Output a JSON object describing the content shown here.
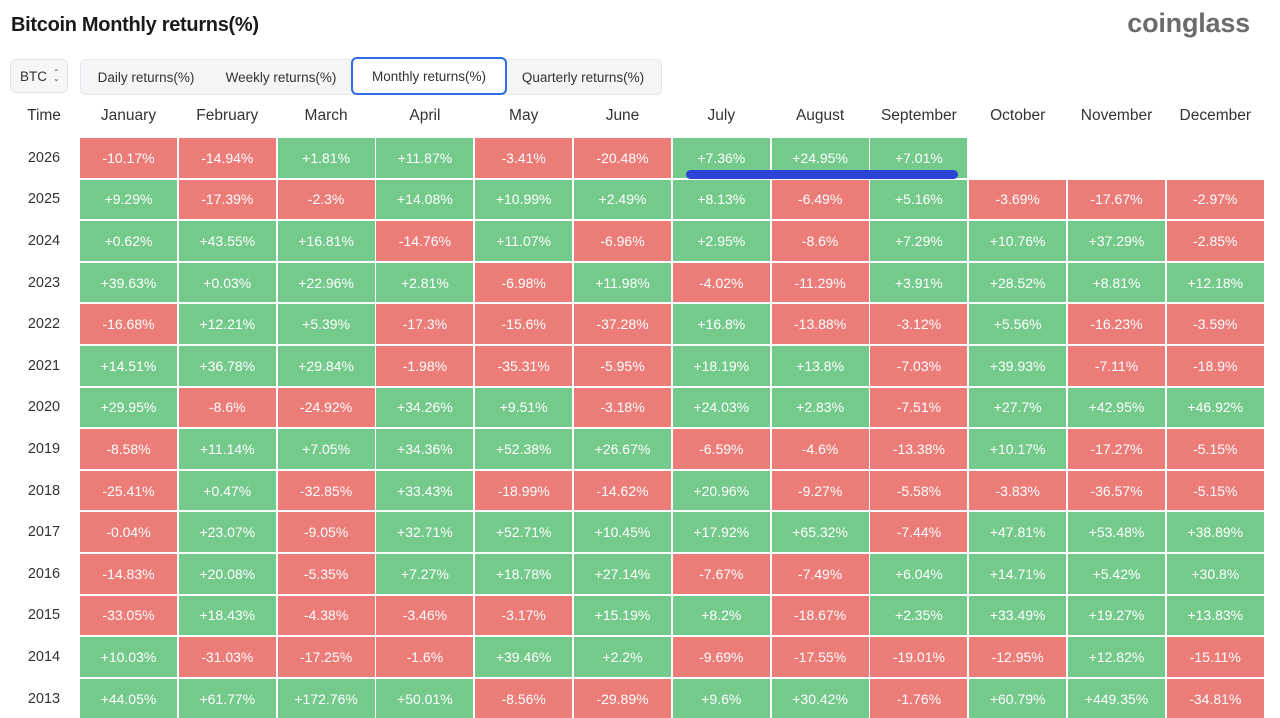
{
  "header": {
    "title": "Bitcoin Monthly returns(%)",
    "logo": "coinglass"
  },
  "controls": {
    "coin": "BTC",
    "tabs": [
      {
        "label": "Daily returns(%)",
        "active": false
      },
      {
        "label": "Weekly returns(%)",
        "active": false
      },
      {
        "label": "Monthly returns(%)",
        "active": true
      },
      {
        "label": "Quarterly returns(%)",
        "active": false
      }
    ]
  },
  "colors": {
    "positive": "#74ca8b",
    "negative": "#ec7c78",
    "marker": "#2a44d6"
  },
  "chart_data": {
    "type": "table",
    "title": "Bitcoin Monthly returns(%)",
    "corner_label": "Time",
    "columns": [
      "January",
      "February",
      "March",
      "April",
      "May",
      "June",
      "July",
      "August",
      "September",
      "October",
      "November",
      "December"
    ],
    "rows": [
      {
        "year": "2026",
        "values": [
          "-10.17%",
          "-14.94%",
          "+1.81%",
          "+11.87%",
          "-3.41%",
          "-20.48%",
          "+7.36%",
          "+24.95%",
          "+7.01%",
          "",
          "",
          ""
        ]
      },
      {
        "year": "2025",
        "values": [
          "+9.29%",
          "-17.39%",
          "-2.3%",
          "+14.08%",
          "+10.99%",
          "+2.49%",
          "+8.13%",
          "-6.49%",
          "+5.16%",
          "-3.69%",
          "-17.67%",
          "-2.97%"
        ]
      },
      {
        "year": "2024",
        "values": [
          "+0.62%",
          "+43.55%",
          "+16.81%",
          "-14.76%",
          "+11.07%",
          "-6.96%",
          "+2.95%",
          "-8.6%",
          "+7.29%",
          "+10.76%",
          "+37.29%",
          "-2.85%"
        ]
      },
      {
        "year": "2023",
        "values": [
          "+39.63%",
          "+0.03%",
          "+22.96%",
          "+2.81%",
          "-6.98%",
          "+11.98%",
          "-4.02%",
          "-11.29%",
          "+3.91%",
          "+28.52%",
          "+8.81%",
          "+12.18%"
        ]
      },
      {
        "year": "2022",
        "values": [
          "-16.68%",
          "+12.21%",
          "+5.39%",
          "-17.3%",
          "-15.6%",
          "-37.28%",
          "+16.8%",
          "-13.88%",
          "-3.12%",
          "+5.56%",
          "-16.23%",
          "-3.59%"
        ]
      },
      {
        "year": "2021",
        "values": [
          "+14.51%",
          "+36.78%",
          "+29.84%",
          "-1.98%",
          "-35.31%",
          "-5.95%",
          "+18.19%",
          "+13.8%",
          "-7.03%",
          "+39.93%",
          "-7.11%",
          "-18.9%"
        ]
      },
      {
        "year": "2020",
        "values": [
          "+29.95%",
          "-8.6%",
          "-24.92%",
          "+34.26%",
          "+9.51%",
          "-3.18%",
          "+24.03%",
          "+2.83%",
          "-7.51%",
          "+27.7%",
          "+42.95%",
          "+46.92%"
        ]
      },
      {
        "year": "2019",
        "values": [
          "-8.58%",
          "+11.14%",
          "+7.05%",
          "+34.36%",
          "+52.38%",
          "+26.67%",
          "-6.59%",
          "-4.6%",
          "-13.38%",
          "+10.17%",
          "-17.27%",
          "-5.15%"
        ]
      },
      {
        "year": "2018",
        "values": [
          "-25.41%",
          "+0.47%",
          "-32.85%",
          "+33.43%",
          "-18.99%",
          "-14.62%",
          "+20.96%",
          "-9.27%",
          "-5.58%",
          "-3.83%",
          "-36.57%",
          "-5.15%"
        ]
      },
      {
        "year": "2017",
        "values": [
          "-0.04%",
          "+23.07%",
          "-9.05%",
          "+32.71%",
          "+52.71%",
          "+10.45%",
          "+17.92%",
          "+65.32%",
          "-7.44%",
          "+47.81%",
          "+53.48%",
          "+38.89%"
        ]
      },
      {
        "year": "2016",
        "values": [
          "-14.83%",
          "+20.08%",
          "-5.35%",
          "+7.27%",
          "+18.78%",
          "+27.14%",
          "-7.67%",
          "-7.49%",
          "+6.04%",
          "+14.71%",
          "+5.42%",
          "+30.8%"
        ]
      },
      {
        "year": "2015",
        "values": [
          "-33.05%",
          "+18.43%",
          "-4.38%",
          "-3.46%",
          "-3.17%",
          "+15.19%",
          "+8.2%",
          "-18.67%",
          "+2.35%",
          "+33.49%",
          "+19.27%",
          "+13.83%"
        ]
      },
      {
        "year": "2014",
        "values": [
          "+10.03%",
          "-31.03%",
          "-17.25%",
          "-1.6%",
          "+39.46%",
          "+2.2%",
          "-9.69%",
          "-17.55%",
          "-19.01%",
          "-12.95%",
          "+12.82%",
          "-15.11%"
        ]
      },
      {
        "year": "2013",
        "values": [
          "+44.05%",
          "+61.77%",
          "+172.76%",
          "+50.01%",
          "-8.56%",
          "-29.89%",
          "+9.6%",
          "+30.42%",
          "-1.76%",
          "+60.79%",
          "+449.35%",
          "-34.81%"
        ]
      }
    ]
  }
}
